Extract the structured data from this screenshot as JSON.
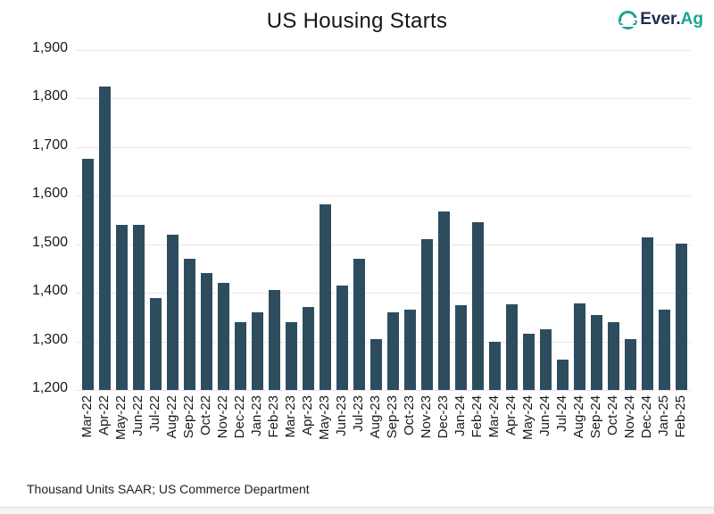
{
  "header": {
    "title": "US Housing Starts",
    "logo": {
      "prefix": "Ever.",
      "suffix": "Ag",
      "icon": "everag-globe-e-icon"
    }
  },
  "footer": {
    "source_note": "Thousand Units SAAR; US Commerce Department"
  },
  "colors": {
    "bar": "#2d4d5e",
    "gridline": "#e7e7e7",
    "logo_navy": "#1f2a4e",
    "logo_teal": "#1aa394",
    "text": "#1a1a1a"
  },
  "chart_data": {
    "type": "bar",
    "title": "US Housing Starts",
    "xlabel": "",
    "ylabel": "",
    "ylim": [
      1200,
      1900
    ],
    "ytick_step": 100,
    "ytick_labels": [
      "1,200",
      "1,300",
      "1,400",
      "1,500",
      "1,600",
      "1,700",
      "1,800",
      "1,900"
    ],
    "grid": "horizontal",
    "legend": "none",
    "units": "Thousand Units SAAR",
    "source": "US Commerce Department",
    "categories": [
      "Mar-22",
      "Apr-22",
      "May-22",
      "Jun-22",
      "Jul-22",
      "Aug-22",
      "Sep-22",
      "Oct-22",
      "Nov-22",
      "Dec-22",
      "Jan-23",
      "Feb-23",
      "Mar-23",
      "Apr-23",
      "May-23",
      "Jun-23",
      "Jul-23",
      "Aug-23",
      "Sep-23",
      "Oct-23",
      "Nov-23",
      "Dec-23",
      "Jan-24",
      "Feb-24",
      "Mar-24",
      "Apr-24",
      "May-24",
      "Jun-24",
      "Jul-24",
      "Aug-24",
      "Sep-24",
      "Oct-24",
      "Nov-24",
      "Dec-24",
      "Jan-25",
      "Feb-25"
    ],
    "values": [
      1675,
      1825,
      1540,
      1540,
      1390,
      1520,
      1470,
      1440,
      1420,
      1340,
      1360,
      1405,
      1340,
      1370,
      1583,
      1415,
      1470,
      1305,
      1360,
      1365,
      1510,
      1568,
      1375,
      1546,
      1300,
      1377,
      1315,
      1325,
      1262,
      1379,
      1355,
      1340,
      1305,
      1515,
      1366,
      1501
    ]
  }
}
